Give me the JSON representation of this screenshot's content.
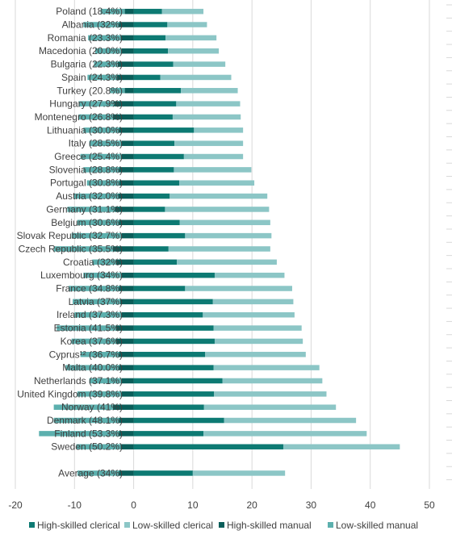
{
  "chart_data": {
    "type": "bar",
    "orientation": "horizontal",
    "stacked": true,
    "xlim": [
      -20,
      50
    ],
    "xticks": [
      "-20",
      "-10",
      "0",
      "10",
      "20",
      "30",
      "40",
      "50"
    ],
    "grid": "vertical",
    "legend": "bottom",
    "categories": [
      "Poland (18.4%)",
      "Albania (32%)",
      "Romania (23.3%)",
      "Macedonia (20.0%)",
      "Bulgaria (22.3%)",
      "Spain (24.3%)",
      "Turkey (20.8%)",
      "Hungary (27.9%)",
      "Montenegro (26.8%)",
      "Lithuania (30.0%)",
      "Italy (28.5%)",
      "Greece (25.4%)",
      "Slovenia (28.8%)",
      "Portugal (30.8%)",
      "Austria (32.0%)",
      "Germany (31.1%)",
      "Belgium (30.6%)",
      "Slovak Republic (32.7%)",
      "Czech Republic (35.5%)",
      "Croatia (32%)",
      "Luxembourg (34%)",
      "France (34.8%)",
      "Latvia (37%)",
      "Ireland (37.3%)",
      "Estonia (41.5%)",
      "Korea (37.6%)",
      "Cyprus¹² (36.7%)",
      "Malta (40.0%)",
      "Netherlands (37.1%)",
      "United Kingdom (39.8%)",
      "Norway (41%)",
      "Denmark (48.1%)",
      "Finland (53.3%)",
      "Sweden (50.2%)",
      "",
      "Average (34%)"
    ],
    "series": [
      {
        "name": "High-skilled clerical",
        "color": "#0d7a73",
        "values": [
          4.8,
          5.7,
          5.4,
          5.8,
          6.7,
          4.5,
          8.0,
          7.2,
          6.6,
          10.2,
          6.9,
          8.5,
          6.8,
          7.7,
          6.1,
          5.3,
          7.8,
          8.7,
          5.9,
          7.3,
          13.7,
          8.7,
          13.4,
          11.7,
          13.5,
          13.7,
          12.1,
          13.5,
          15.0,
          13.6,
          11.9,
          15.3,
          11.8,
          25.3,
          null,
          10.0
        ]
      },
      {
        "name": "Low-skilled clerical",
        "color": "#8cc6c6",
        "values": [
          7.0,
          6.7,
          8.6,
          8.6,
          8.8,
          12.0,
          9.6,
          10.8,
          11.5,
          8.3,
          11.6,
          10.0,
          13.1,
          12.7,
          16.5,
          17.6,
          15.3,
          14.6,
          17.2,
          16.9,
          11.8,
          18.1,
          13.6,
          15.5,
          14.9,
          14.9,
          17.0,
          17.9,
          16.9,
          19.0,
          22.3,
          22.3,
          27.6,
          19.7,
          null,
          15.6
        ]
      },
      {
        "name": "High-skilled manual",
        "color": "#0a5e5a",
        "values": [
          -1.5,
          -2.5,
          -2.2,
          -2.0,
          -2.7,
          -2.8,
          -1.5,
          -3.3,
          -3.5,
          -2.5,
          -2.0,
          -2.0,
          -2.5,
          -2.4,
          -2.6,
          -3.2,
          -2.5,
          -2.0,
          -3.5,
          -3.0,
          -2.0,
          -2.5,
          -2.3,
          -2.0,
          -3.0,
          -3.0,
          -2.5,
          -2.5,
          -2.0,
          -2.0,
          -3.5,
          -2.5,
          -2.5,
          -2.2,
          null,
          -2.5
        ]
      },
      {
        "name": "Low-skilled manual",
        "color": "#5cb0ae",
        "values": [
          -4.1,
          -6.0,
          -5.5,
          -4.5,
          -4.0,
          -5.0,
          -2.5,
          -6.0,
          -5.8,
          -6.0,
          -5.5,
          -7.0,
          -6.0,
          -5.5,
          -7.5,
          -8.0,
          -7.0,
          -8.5,
          -10.0,
          -4.0,
          -6.5,
          -8.5,
          -8.0,
          -8.0,
          -10.0,
          -7.5,
          -6.5,
          -9.0,
          -5.5,
          -7.5,
          -10.0,
          -11.0,
          -13.5,
          -7.5,
          null,
          -7.0
        ]
      }
    ]
  }
}
